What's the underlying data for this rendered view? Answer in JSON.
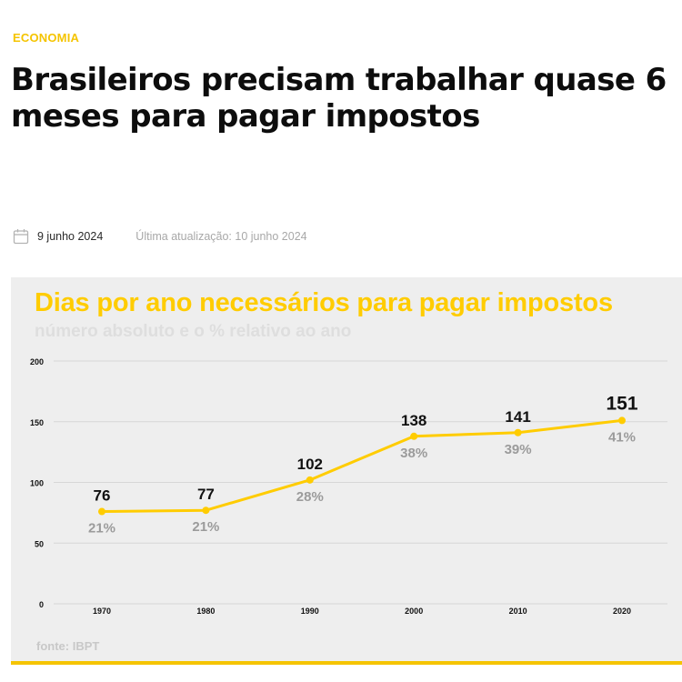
{
  "article": {
    "category": "ECONOMIA",
    "title": "Brasileiros precisam trabalhar quase 6 meses para pagar impostos",
    "published": "9 junho 2024",
    "updated": "Última atualização: 10 junho 2024",
    "calendar_icon": "calendar-icon"
  },
  "colors": {
    "accent": "#ffcc00",
    "line": "#ffcc00",
    "grid": "#d6d6d6",
    "card": "#eeeeee"
  },
  "chart_data": {
    "type": "line",
    "title": "Dias por ano necessários para pagar impostos",
    "subtitle": "número absoluto e o % relativo ao ano",
    "x": [
      "1970",
      "1980",
      "1990",
      "2000",
      "2010",
      "2020"
    ],
    "series": [
      {
        "values": [
          76,
          77,
          102,
          138,
          141,
          151
        ],
        "percent_labels": [
          "21%",
          "21%",
          "28%",
          "38%",
          "39%",
          "41%"
        ]
      }
    ],
    "y_ticks": [
      0,
      50,
      100,
      150,
      200
    ],
    "ylim": [
      0,
      200
    ],
    "grid": true,
    "source": "fonte: IBPT"
  }
}
